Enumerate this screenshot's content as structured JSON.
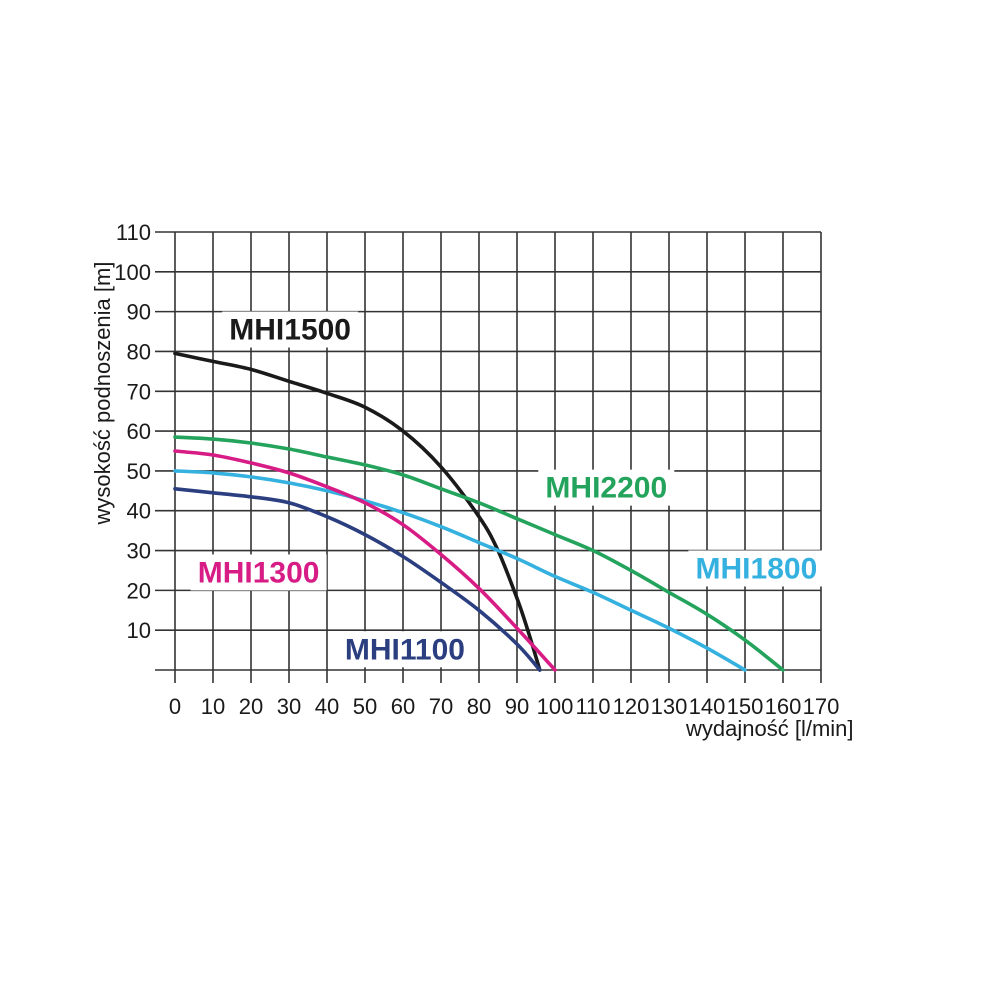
{
  "figure": {
    "background": "#ffffff",
    "description": "pump performance curves head vs flow"
  },
  "chart_data": {
    "type": "line",
    "title": "",
    "xlabel": "wydajność [l/min]",
    "ylabel": "wysokość podnoszenia [m]",
    "xlim": [
      0,
      170
    ],
    "ylim": [
      0,
      110
    ],
    "x_tick_step": 10,
    "y_tick_step": 10,
    "y_tick_labels_start_at": 10,
    "grid": true,
    "grid_color": "#333333",
    "axis_text_color": "#1a1a1a",
    "legend_position": "labels-on-chart",
    "series": [
      {
        "name": "MHI1500",
        "color": "#1a1a1a",
        "label_pos": [
          30.3,
          85.5
        ],
        "points": [
          [
            0,
            79.5
          ],
          [
            10,
            77.5
          ],
          [
            20,
            75.5
          ],
          [
            30,
            72.5
          ],
          [
            40,
            69.5
          ],
          [
            50,
            66
          ],
          [
            60,
            60
          ],
          [
            70,
            51
          ],
          [
            80,
            38.5
          ],
          [
            85,
            30
          ],
          [
            90,
            18
          ],
          [
            93,
            9.5
          ],
          [
            96,
            0
          ]
        ]
      },
      {
        "name": "MHI2200",
        "color": "#23a35c",
        "label_pos": [
          113.5,
          45.8
        ],
        "points": [
          [
            0,
            58.5
          ],
          [
            10,
            58
          ],
          [
            20,
            57
          ],
          [
            30,
            55.5
          ],
          [
            40,
            53.5
          ],
          [
            50,
            51.5
          ],
          [
            60,
            49
          ],
          [
            70,
            45.5
          ],
          [
            80,
            42
          ],
          [
            90,
            38
          ],
          [
            100,
            34
          ],
          [
            110,
            30
          ],
          [
            120,
            25
          ],
          [
            130,
            19.5
          ],
          [
            140,
            14
          ],
          [
            150,
            7.5
          ],
          [
            160,
            0
          ]
        ]
      },
      {
        "name": "MHI1800",
        "color": "#35b1e0",
        "label_pos": [
          153,
          25.5
        ],
        "points": [
          [
            0,
            50
          ],
          [
            10,
            49.5
          ],
          [
            20,
            48.5
          ],
          [
            30,
            47
          ],
          [
            40,
            45
          ],
          [
            50,
            42.5
          ],
          [
            60,
            39.5
          ],
          [
            70,
            36
          ],
          [
            80,
            32
          ],
          [
            90,
            28
          ],
          [
            100,
            23.5
          ],
          [
            110,
            19.5
          ],
          [
            120,
            15
          ],
          [
            130,
            10.5
          ],
          [
            140,
            5.5
          ],
          [
            150,
            0
          ]
        ]
      },
      {
        "name": "MHI1300",
        "color": "#d81c86",
        "label_pos": [
          22,
          24.5
        ],
        "points": [
          [
            0,
            55
          ],
          [
            10,
            54
          ],
          [
            20,
            52
          ],
          [
            30,
            49.5
          ],
          [
            40,
            46
          ],
          [
            50,
            42
          ],
          [
            60,
            36.5
          ],
          [
            70,
            29
          ],
          [
            80,
            20.5
          ],
          [
            90,
            10.5
          ],
          [
            100,
            0
          ]
        ]
      },
      {
        "name": "MHI1100",
        "color": "#2b3e80",
        "label_pos": [
          60.5,
          5.2
        ],
        "points": [
          [
            0,
            45.5
          ],
          [
            10,
            44.5
          ],
          [
            20,
            43.5
          ],
          [
            30,
            42
          ],
          [
            40,
            38.5
          ],
          [
            50,
            34
          ],
          [
            60,
            28.5
          ],
          [
            70,
            22
          ],
          [
            80,
            15
          ],
          [
            90,
            6.5
          ],
          [
            96,
            0
          ]
        ]
      }
    ]
  }
}
